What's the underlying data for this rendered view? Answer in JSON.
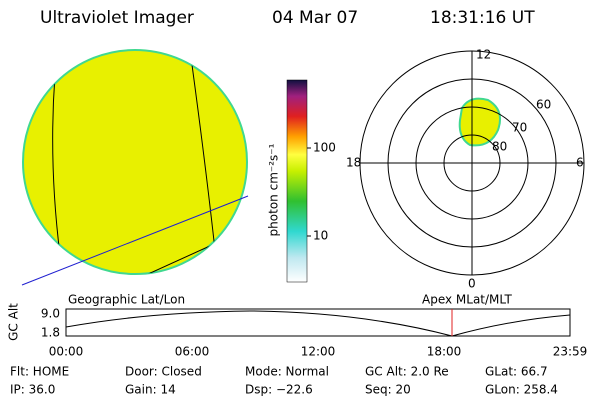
{
  "header": {
    "title": "Ultraviolet Imager",
    "date": "04 Mar 07",
    "time": "18:31:16 UT"
  },
  "colorbar": {
    "label": "photon cm⁻²s⁻¹",
    "ticks": [
      "100",
      "10"
    ]
  },
  "polar": {
    "hour_labels": [
      "12",
      "18",
      "6",
      "0"
    ],
    "lat_labels": [
      "60",
      "70",
      "80"
    ]
  },
  "altitude": {
    "left_title": "Geographic Lat/Lon",
    "right_title": "Apex MLat/MLT",
    "axis_label": "GC Alt",
    "yticks": [
      "9.0",
      "1.8"
    ],
    "xticks": [
      "00:00",
      "06:00",
      "12:00",
      "18:00",
      "23:59"
    ]
  },
  "footer": {
    "rows": [
      [
        "Flt: HOME",
        "Door: Closed",
        "Mode: Normal",
        "GC Alt: 2.0 Re",
        "GLat:  66.7"
      ],
      [
        "IP: 36.0",
        "Gain: 14",
        "Dsp:  −22.6",
        "Seq: 20",
        "GLon: 258.4"
      ]
    ]
  }
}
